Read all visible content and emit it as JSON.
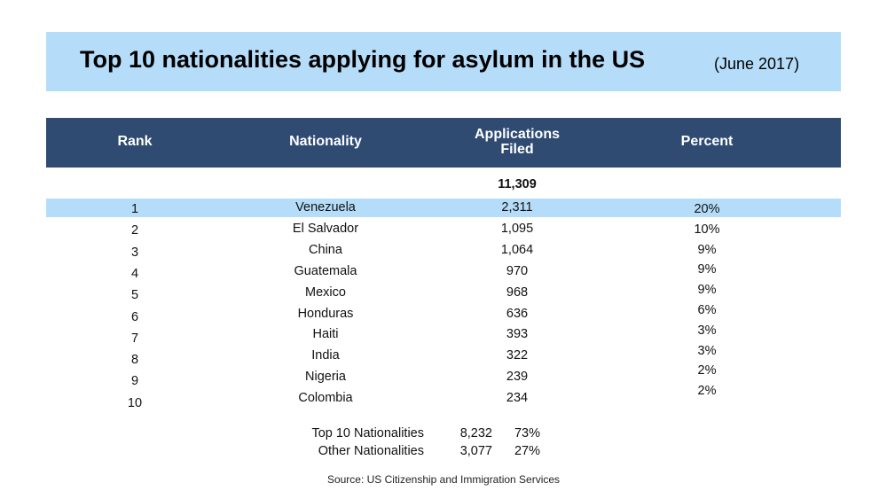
{
  "header": {
    "title": "Top 10 nationalities applying for asylum in the US",
    "subtitle": "(June 2017)"
  },
  "table": {
    "columns": [
      "Rank",
      "Nationality",
      "Applications Filed",
      "Percent"
    ],
    "total": "11,309",
    "rows": [
      [
        "1",
        "Venezuela",
        "2,311",
        "20%"
      ],
      [
        "2",
        "El Salvador",
        "1,095",
        "10%"
      ],
      [
        "3",
        "China",
        "1,064",
        "9%"
      ],
      [
        "4",
        "Guatemala",
        "970",
        "9%"
      ],
      [
        "5",
        "Mexico",
        "968",
        "9%"
      ],
      [
        "6",
        "Honduras",
        "636",
        "6%"
      ],
      [
        "7",
        "Haiti",
        "393",
        "3%"
      ],
      [
        "8",
        "India",
        "322",
        "3%"
      ],
      [
        "9",
        "Nigeria",
        "239",
        "2%"
      ],
      [
        "10",
        "Colombia",
        "234",
        "2%"
      ]
    ]
  },
  "summary": [
    [
      "Top 10 Nationalities",
      "8,232",
      "73%"
    ],
    [
      "Other Nationalities",
      "3,077",
      "27%"
    ]
  ],
  "source": "Source: US Citizenship and Immigration Services"
}
